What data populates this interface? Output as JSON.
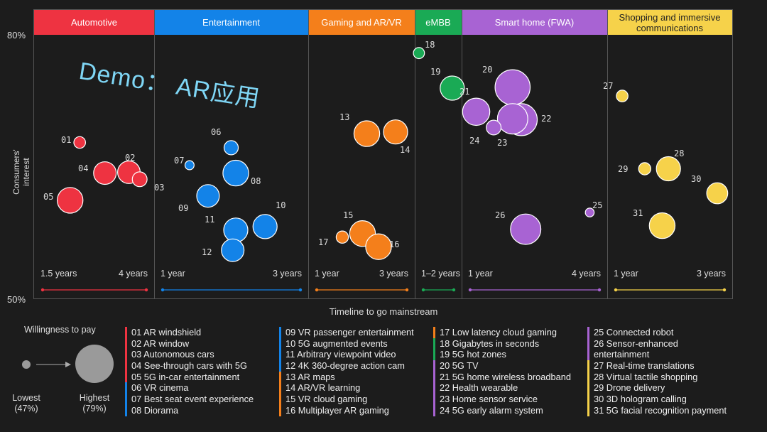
{
  "chart_data": {
    "type": "bubble",
    "xlabel": "Timeline to go mainstream",
    "ylabel": "Consumers' interest",
    "ylim": [
      50,
      80
    ],
    "ytick_labels": [
      "80%",
      "50%"
    ],
    "annotation": "Demo： AR应用",
    "size_legend": {
      "title": "Willingness to pay",
      "lowest": "Lowest",
      "lowest_value": "(47%)",
      "highest": "Highest",
      "highest_value": "(79%)"
    },
    "categories": [
      {
        "name": "Automotive",
        "color": "#ee3341",
        "timeline_start": "1.5 years",
        "timeline_end": "4 years",
        "items": [
          {
            "id": "01",
            "label": "01 AR windshield",
            "x": 0.38,
            "y": 67.8,
            "size": 0.1
          },
          {
            "id": "02",
            "label": "02 AR window",
            "x": 0.79,
            "y": 64.4,
            "size": 0.45
          },
          {
            "id": "03",
            "label": "03 Autonomous cars",
            "x": 0.88,
            "y": 63.6,
            "size": 0.2
          },
          {
            "id": "04",
            "label": "04 See-through cars with 5G",
            "x": 0.59,
            "y": 64.3,
            "size": 0.45
          },
          {
            "id": "05",
            "label": "05 5G in-car entertainment",
            "x": 0.3,
            "y": 61.2,
            "size": 0.55
          }
        ]
      },
      {
        "name": "Entertainment",
        "color": "#1383e8",
        "timeline_start": "1 year",
        "timeline_end": "3 years",
        "items": [
          {
            "id": "06",
            "label": "06 VR cinema",
            "x": 0.5,
            "y": 67.2,
            "size": 0.18
          },
          {
            "id": "07",
            "label": "07 Best seat event experience",
            "x": 0.23,
            "y": 65.2,
            "size": 0.02
          },
          {
            "id": "08",
            "label": "08 Diorama",
            "x": 0.53,
            "y": 64.3,
            "size": 0.55
          },
          {
            "id": "09",
            "label": "09 VR passenger entertainment",
            "x": 0.35,
            "y": 61.7,
            "size": 0.45
          },
          {
            "id": "10",
            "label": "10 5G augmented events",
            "x": 0.72,
            "y": 58.2,
            "size": 0.5
          },
          {
            "id": "11",
            "label": "11 Arbitrary viewpoint video",
            "x": 0.53,
            "y": 57.8,
            "size": 0.5
          },
          {
            "id": "12",
            "label": "12 4K 360-degree action cam",
            "x": 0.51,
            "y": 55.5,
            "size": 0.45
          }
        ]
      },
      {
        "name": "Gaming and AR/VR",
        "color": "#f47f1b",
        "timeline_start": "1 year",
        "timeline_end": "3 years",
        "items": [
          {
            "id": "13",
            "label": "13 AR maps",
            "x": 0.55,
            "y": 68.8,
            "size": 0.55
          },
          {
            "id": "14",
            "label": "14 AR/VR learning",
            "x": 0.82,
            "y": 69.0,
            "size": 0.5
          },
          {
            "id": "15",
            "label": "15 VR cloud gaming",
            "x": 0.51,
            "y": 57.4,
            "size": 0.55
          },
          {
            "id": "16",
            "label": "16 Multiplayer AR gaming",
            "x": 0.66,
            "y": 55.9,
            "size": 0.55
          },
          {
            "id": "17",
            "label": "17 Low latency cloud gaming",
            "x": 0.32,
            "y": 57.0,
            "size": 0.12
          }
        ]
      },
      {
        "name": "eMBB",
        "color": "#1aaa55",
        "timeline_start": "1–2 years",
        "timeline_end": "",
        "items": [
          {
            "id": "18",
            "label": "18 Gigabytes in seconds",
            "x": 0.09,
            "y": 78.0,
            "size": 0.08
          },
          {
            "id": "19",
            "label": "19 5G hot zones",
            "x": 0.8,
            "y": 74.0,
            "size": 0.5
          }
        ]
      },
      {
        "name": "Smart home (FWA)",
        "color": "#a863d3",
        "timeline_start": "1 year",
        "timeline_end": "4 years",
        "items": [
          {
            "id": "20",
            "label": "20 5G TV",
            "x": 0.35,
            "y": 74.1,
            "size": 0.85
          },
          {
            "id": "21",
            "label": "21 5G home wireless broadband",
            "x": 0.1,
            "y": 71.3,
            "size": 0.6
          },
          {
            "id": "22",
            "label": "22 Health wearable",
            "x": 0.41,
            "y": 70.4,
            "size": 0.75
          },
          {
            "id": "23",
            "label": "23 Home sensor service",
            "x": 0.35,
            "y": 70.5,
            "size": 0.7
          },
          {
            "id": "24",
            "label": "24 5G early alarm system",
            "x": 0.22,
            "y": 69.5,
            "size": 0.2
          },
          {
            "id": "25",
            "label": "25 Connected robot",
            "x": 0.88,
            "y": 59.8,
            "size": 0.01
          },
          {
            "id": "26",
            "label": "26 Sensor-enhanced entertainment",
            "x": 0.44,
            "y": 57.9,
            "size": 0.7
          }
        ]
      },
      {
        "name": "Shopping and immersive communications",
        "color": "#f6d24a",
        "timeline_start": "1 year",
        "timeline_end": "3 years",
        "items": [
          {
            "id": "27",
            "label": "27 Real-time translations",
            "x": 0.12,
            "y": 73.1,
            "size": 0.1
          },
          {
            "id": "28",
            "label": "28 Virtual tactile shopping",
            "x": 0.49,
            "y": 64.8,
            "size": 0.5
          },
          {
            "id": "29",
            "label": "29 Drone delivery",
            "x": 0.3,
            "y": 64.8,
            "size": 0.12
          },
          {
            "id": "30",
            "label": "30 3D hologram calling",
            "x": 0.88,
            "y": 62.0,
            "size": 0.4
          },
          {
            "id": "31",
            "label": "31 5G facial recognition payment",
            "x": 0.44,
            "y": 58.3,
            "size": 0.55
          }
        ]
      }
    ]
  }
}
